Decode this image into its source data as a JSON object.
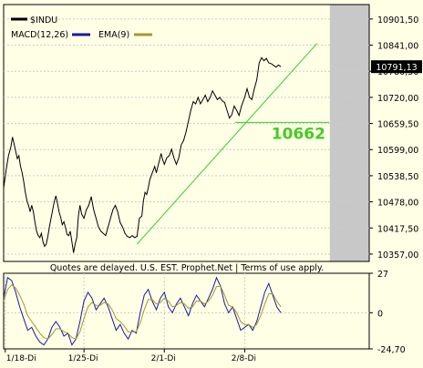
{
  "quote_note": "Quotes are delayed. U.S. EST. Prophet.Net | Terms of use apply.",
  "colors": {
    "background": "#ffffe6",
    "price_line": "#000000",
    "trend_line": "#33cc33",
    "label_green": "#44cc22",
    "future_area": "#c8c8c8",
    "grid": "#cccccc",
    "macd": "#1a1aa0",
    "ema": "#a09a30"
  },
  "chart_data": [
    {
      "type": "line",
      "title": "",
      "legend": [
        {
          "label": "$INDU",
          "color": "#000000"
        },
        {
          "label": "MACD(12,26)",
          "color": "#1a1aa0"
        },
        {
          "label": "EMA(9)",
          "color": "#a09a30"
        }
      ],
      "legend_placement": "top-left",
      "ylim": [
        10340,
        10935
      ],
      "yticks": [
        {
          "value": 10901.5,
          "label": "10901,50"
        },
        {
          "value": 10841.0,
          "label": "10841,00"
        },
        {
          "value": 10780.5,
          "label": "10780,50"
        },
        {
          "value": 10720.0,
          "label": "10720,00"
        },
        {
          "value": 10659.5,
          "label": "10659,50"
        },
        {
          "value": 10599.0,
          "label": "10599,00"
        },
        {
          "value": 10538.5,
          "label": "10538,50"
        },
        {
          "value": 10478.0,
          "label": "10478,00"
        },
        {
          "value": 10417.5,
          "label": "10417,50"
        },
        {
          "value": 10357.0,
          "label": "10357,00"
        }
      ],
      "grid": true,
      "last_value_label": "10791,13",
      "last_value": 10791.13,
      "annotation_label": "10662",
      "annotation_value": 10662,
      "price_series": [
        [
          0,
          10510
        ],
        [
          0.03,
          10550
        ],
        [
          0.06,
          10585
        ],
        [
          0.09,
          10605
        ],
        [
          0.11,
          10628
        ],
        [
          0.13,
          10612
        ],
        [
          0.15,
          10595
        ],
        [
          0.17,
          10578
        ],
        [
          0.19,
          10585
        ],
        [
          0.21,
          10560
        ],
        [
          0.23,
          10545
        ],
        [
          0.25,
          10525
        ],
        [
          0.27,
          10500
        ],
        [
          0.29,
          10480
        ],
        [
          0.31,
          10470
        ],
        [
          0.33,
          10455
        ],
        [
          0.35,
          10470
        ],
        [
          0.37,
          10455
        ],
        [
          0.39,
          10430
        ],
        [
          0.41,
          10410
        ],
        [
          0.43,
          10400
        ],
        [
          0.45,
          10395
        ],
        [
          0.47,
          10405
        ],
        [
          0.49,
          10385
        ],
        [
          0.51,
          10375
        ],
        [
          0.53,
          10380
        ],
        [
          0.55,
          10398
        ],
        [
          0.57,
          10420
        ],
        [
          0.59,
          10440
        ],
        [
          0.61,
          10460
        ],
        [
          0.63,
          10478
        ],
        [
          0.65,
          10492
        ],
        [
          0.67,
          10475
        ],
        [
          0.69,
          10455
        ],
        [
          0.71,
          10442
        ],
        [
          0.73,
          10425
        ],
        [
          0.75,
          10432
        ],
        [
          0.77,
          10418
        ],
        [
          0.79,
          10402
        ],
        [
          0.81,
          10400
        ],
        [
          0.83,
          10410
        ],
        [
          0.85,
          10385
        ],
        [
          0.87,
          10360
        ],
        [
          0.89,
          10380
        ],
        [
          0.91,
          10395
        ],
        [
          0.93,
          10445
        ],
        [
          0.95,
          10470
        ],
        [
          0.97,
          10450
        ],
        [
          1.0,
          10440
        ],
        [
          1.03,
          10460
        ],
        [
          1.06,
          10470
        ],
        [
          1.09,
          10490
        ],
        [
          1.12,
          10460
        ],
        [
          1.15,
          10440
        ],
        [
          1.18,
          10420
        ],
        [
          1.21,
          10410
        ],
        [
          1.24,
          10405
        ],
        [
          1.27,
          10400
        ],
        [
          1.3,
          10420
        ],
        [
          1.33,
          10440
        ],
        [
          1.36,
          10460
        ],
        [
          1.39,
          10470
        ],
        [
          1.42,
          10455
        ],
        [
          1.45,
          10430
        ],
        [
          1.48,
          10420
        ],
        [
          1.51,
          10405
        ],
        [
          1.54,
          10398
        ],
        [
          1.57,
          10395
        ],
        [
          1.6,
          10400
        ],
        [
          1.63,
          10395
        ],
        [
          1.66,
          10398
        ],
        [
          1.69,
          10440
        ],
        [
          1.72,
          10445
        ],
        [
          1.74,
          10480
        ],
        [
          1.76,
          10500
        ],
        [
          1.78,
          10495
        ],
        [
          1.8,
          10510
        ],
        [
          1.82,
          10530
        ],
        [
          1.84,
          10540
        ],
        [
          1.86,
          10550
        ],
        [
          1.88,
          10560
        ],
        [
          1.9,
          10545
        ],
        [
          1.92,
          10560
        ],
        [
          1.94,
          10575
        ],
        [
          1.96,
          10590
        ],
        [
          1.98,
          10575
        ],
        [
          2.0,
          10565
        ],
        [
          2.03,
          10580
        ],
        [
          2.06,
          10585
        ],
        [
          2.09,
          10600
        ],
        [
          2.12,
          10580
        ],
        [
          2.15,
          10565
        ],
        [
          2.18,
          10580
        ],
        [
          2.21,
          10610
        ],
        [
          2.24,
          10620
        ],
        [
          2.27,
          10640
        ],
        [
          2.3,
          10665
        ],
        [
          2.33,
          10690
        ],
        [
          2.36,
          10710
        ],
        [
          2.39,
          10705
        ],
        [
          2.42,
          10720
        ],
        [
          2.45,
          10705
        ],
        [
          2.48,
          10715
        ],
        [
          2.51,
          10725
        ],
        [
          2.54,
          10710
        ],
        [
          2.57,
          10720
        ],
        [
          2.6,
          10735
        ],
        [
          2.63,
          10725
        ],
        [
          2.66,
          10715
        ],
        [
          2.69,
          10720
        ],
        [
          2.72,
          10712
        ],
        [
          2.75,
          10708
        ],
        [
          2.78,
          10690
        ],
        [
          2.81,
          10672
        ],
        [
          2.84,
          10680
        ],
        [
          2.87,
          10700
        ],
        [
          2.9,
          10690
        ],
        [
          2.93,
          10678
        ],
        [
          2.96,
          10700
        ],
        [
          3.0,
          10720
        ],
        [
          3.03,
          10740
        ],
        [
          3.06,
          10720
        ],
        [
          3.09,
          10715
        ],
        [
          3.12,
          10740
        ],
        [
          3.15,
          10760
        ],
        [
          3.18,
          10800
        ],
        [
          3.21,
          10812
        ],
        [
          3.24,
          10805
        ],
        [
          3.27,
          10810
        ],
        [
          3.3,
          10800
        ],
        [
          3.33,
          10798
        ],
        [
          3.36,
          10794
        ],
        [
          3.39,
          10790
        ],
        [
          3.42,
          10795
        ],
        [
          3.45,
          10791
        ]
      ],
      "trend_line": [
        [
          1.66,
          10380
        ],
        [
          3.9,
          10845
        ]
      ],
      "support_line": [
        [
          2.88,
          10662
        ],
        [
          4.05,
          10662
        ]
      ],
      "future_region_start": 4.06,
      "x_domain": [
        0,
        4.55
      ]
    },
    {
      "type": "line",
      "title": "",
      "ylim": [
        -24.7,
        27
      ],
      "yticks": [
        {
          "value": 27,
          "label": "27"
        },
        {
          "value": 0,
          "label": "0"
        },
        {
          "value": -24.7,
          "label": "-24,70"
        }
      ],
      "xticks": [
        "1/18-Di",
        "1/25-Di",
        "2/1-Di",
        "2/8-Di"
      ],
      "grid": true,
      "macd": [
        [
          0,
          10
        ],
        [
          0.05,
          24
        ],
        [
          0.1,
          22
        ],
        [
          0.15,
          14
        ],
        [
          0.2,
          4
        ],
        [
          0.25,
          -4
        ],
        [
          0.3,
          -12
        ],
        [
          0.35,
          -10
        ],
        [
          0.4,
          -16
        ],
        [
          0.45,
          -20
        ],
        [
          0.5,
          -22
        ],
        [
          0.55,
          -18
        ],
        [
          0.6,
          -10
        ],
        [
          0.65,
          -6
        ],
        [
          0.7,
          -10
        ],
        [
          0.75,
          -16
        ],
        [
          0.8,
          -14
        ],
        [
          0.85,
          -22
        ],
        [
          0.9,
          -18
        ],
        [
          0.95,
          -6
        ],
        [
          1.0,
          8
        ],
        [
          1.05,
          14
        ],
        [
          1.1,
          10
        ],
        [
          1.15,
          2
        ],
        [
          1.2,
          6
        ],
        [
          1.25,
          10
        ],
        [
          1.3,
          4
        ],
        [
          1.35,
          -4
        ],
        [
          1.4,
          -12
        ],
        [
          1.45,
          -8
        ],
        [
          1.5,
          -14
        ],
        [
          1.55,
          -18
        ],
        [
          1.6,
          -12
        ],
        [
          1.65,
          -14
        ],
        [
          1.7,
          0
        ],
        [
          1.75,
          12
        ],
        [
          1.8,
          16
        ],
        [
          1.85,
          8
        ],
        [
          1.9,
          2
        ],
        [
          1.95,
          10
        ],
        [
          2.0,
          14
        ],
        [
          2.05,
          4
        ],
        [
          2.1,
          0
        ],
        [
          2.15,
          6
        ],
        [
          2.2,
          10
        ],
        [
          2.25,
          4
        ],
        [
          2.3,
          -2
        ],
        [
          2.35,
          6
        ],
        [
          2.4,
          12
        ],
        [
          2.45,
          8
        ],
        [
          2.5,
          4
        ],
        [
          2.55,
          10
        ],
        [
          2.6,
          16
        ],
        [
          2.65,
          24
        ],
        [
          2.7,
          18
        ],
        [
          2.75,
          6
        ],
        [
          2.8,
          0
        ],
        [
          2.85,
          4
        ],
        [
          2.9,
          -4
        ],
        [
          2.95,
          -12
        ],
        [
          3.0,
          -10
        ],
        [
          3.05,
          -8
        ],
        [
          3.1,
          -12
        ],
        [
          3.15,
          -6
        ],
        [
          3.2,
          4
        ],
        [
          3.25,
          14
        ],
        [
          3.3,
          20
        ],
        [
          3.35,
          12
        ],
        [
          3.4,
          4
        ],
        [
          3.45,
          0
        ]
      ],
      "ema": [
        [
          0,
          8
        ],
        [
          0.05,
          16
        ],
        [
          0.1,
          19
        ],
        [
          0.15,
          17
        ],
        [
          0.2,
          12
        ],
        [
          0.25,
          6
        ],
        [
          0.3,
          -2
        ],
        [
          0.35,
          -6
        ],
        [
          0.4,
          -10
        ],
        [
          0.45,
          -14
        ],
        [
          0.5,
          -17
        ],
        [
          0.55,
          -18
        ],
        [
          0.6,
          -15
        ],
        [
          0.65,
          -11
        ],
        [
          0.7,
          -11
        ],
        [
          0.75,
          -13
        ],
        [
          0.8,
          -14
        ],
        [
          0.85,
          -17
        ],
        [
          0.9,
          -18
        ],
        [
          0.95,
          -13
        ],
        [
          1.0,
          -4
        ],
        [
          1.05,
          4
        ],
        [
          1.1,
          7
        ],
        [
          1.15,
          5
        ],
        [
          1.2,
          5
        ],
        [
          1.25,
          7
        ],
        [
          1.3,
          6
        ],
        [
          1.35,
          2
        ],
        [
          1.4,
          -4
        ],
        [
          1.45,
          -6
        ],
        [
          1.5,
          -9
        ],
        [
          1.55,
          -13
        ],
        [
          1.6,
          -13
        ],
        [
          1.65,
          -13
        ],
        [
          1.7,
          -7
        ],
        [
          1.75,
          2
        ],
        [
          1.8,
          9
        ],
        [
          1.85,
          9
        ],
        [
          1.9,
          6
        ],
        [
          1.95,
          7
        ],
        [
          2.0,
          10
        ],
        [
          2.05,
          8
        ],
        [
          2.1,
          4
        ],
        [
          2.15,
          5
        ],
        [
          2.2,
          7
        ],
        [
          2.25,
          6
        ],
        [
          2.3,
          3
        ],
        [
          2.35,
          4
        ],
        [
          2.4,
          8
        ],
        [
          2.45,
          8
        ],
        [
          2.5,
          6
        ],
        [
          2.55,
          8
        ],
        [
          2.6,
          12
        ],
        [
          2.65,
          18
        ],
        [
          2.7,
          18
        ],
        [
          2.75,
          12
        ],
        [
          2.8,
          5
        ],
        [
          2.85,
          4
        ],
        [
          2.9,
          0
        ],
        [
          2.95,
          -6
        ],
        [
          3.0,
          -8
        ],
        [
          3.05,
          -8
        ],
        [
          3.1,
          -10
        ],
        [
          3.15,
          -8
        ],
        [
          3.2,
          -2
        ],
        [
          3.25,
          6
        ],
        [
          3.3,
          13
        ],
        [
          3.35,
          13
        ],
        [
          3.4,
          8
        ],
        [
          3.45,
          4
        ]
      ],
      "x_domain": [
        0,
        4.55
      ]
    }
  ]
}
